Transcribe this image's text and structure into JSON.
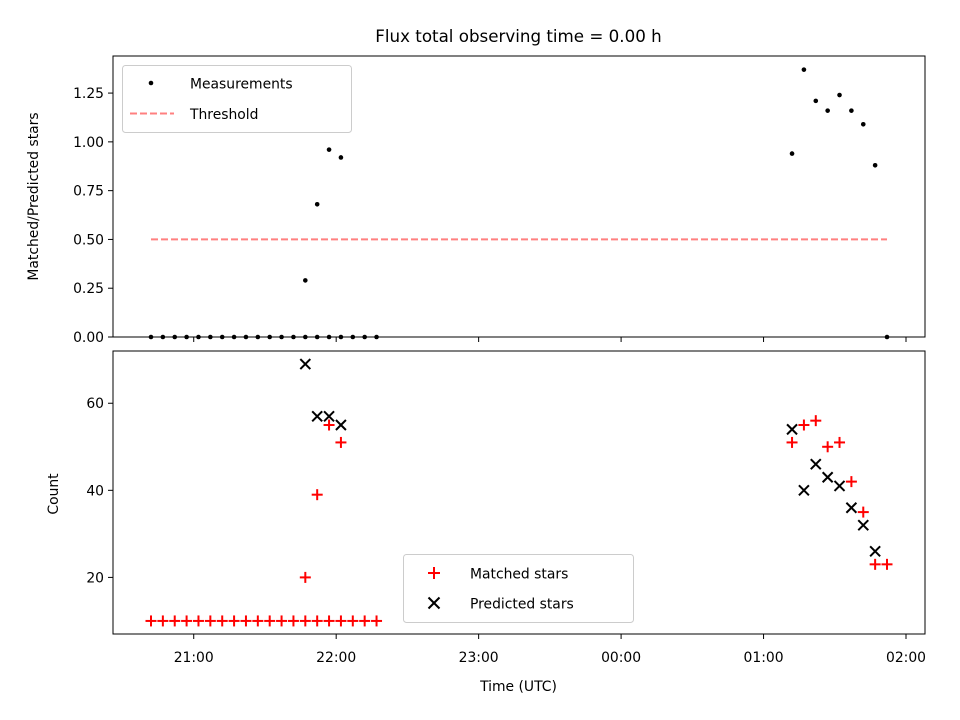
{
  "chart_data": [
    {
      "type": "scatter",
      "title": "Flux total observing time = 0.00 h",
      "xlabel": "",
      "ylabel": "Matched/Predicted stars",
      "xlim": [
        "20:26",
        "02:08"
      ],
      "ylim": [
        0,
        1.44
      ],
      "yticks": [
        0.0,
        0.25,
        0.5,
        0.75,
        1.0,
        1.25
      ],
      "ytick_labels": [
        "0.00",
        "0.25",
        "0.50",
        "0.75",
        "1.00",
        "1.25"
      ],
      "legend_position": "top-left",
      "series": [
        {
          "name": "Measurements",
          "marker": "dot",
          "color": "#000000",
          "points": [
            [
              "20:42",
              0
            ],
            [
              "20:47",
              0
            ],
            [
              "20:52",
              0
            ],
            [
              "20:57",
              0
            ],
            [
              "21:02",
              0
            ],
            [
              "21:07",
              0
            ],
            [
              "21:12",
              0
            ],
            [
              "21:17",
              0
            ],
            [
              "21:22",
              0
            ],
            [
              "21:27",
              0
            ],
            [
              "21:32",
              0
            ],
            [
              "21:37",
              0
            ],
            [
              "21:42",
              0
            ],
            [
              "21:47",
              0
            ],
            [
              "21:52",
              0
            ],
            [
              "21:57",
              0
            ],
            [
              "22:02",
              0
            ],
            [
              "22:07",
              0
            ],
            [
              "22:12",
              0
            ],
            [
              "22:17",
              0
            ],
            [
              "21:47",
              0.29
            ],
            [
              "21:52",
              0.68
            ],
            [
              "21:57",
              0.96
            ],
            [
              "22:02",
              0.92
            ],
            [
              "01:12",
              0.94
            ],
            [
              "01:17",
              1.37
            ],
            [
              "01:22",
              1.21
            ],
            [
              "01:27",
              1.16
            ],
            [
              "01:32",
              1.24
            ],
            [
              "01:37",
              1.16
            ],
            [
              "01:42",
              1.09
            ],
            [
              "01:47",
              0.88
            ],
            [
              "01:52",
              0
            ]
          ]
        },
        {
          "name": "Threshold",
          "marker": "dashed-line",
          "color": "#ff8080",
          "points": [
            [
              "20:42",
              0.5
            ],
            [
              "01:52",
              0.5
            ]
          ]
        }
      ]
    },
    {
      "type": "scatter",
      "xlabel": "Time (UTC)",
      "ylabel": "Count",
      "xlim": [
        "20:26",
        "02:08"
      ],
      "ylim": [
        7,
        72
      ],
      "xticks": [
        "21:00",
        "22:00",
        "23:00",
        "00:00",
        "01:00",
        "02:00"
      ],
      "yticks": [
        20,
        40,
        60
      ],
      "ytick_labels": [
        "20",
        "40",
        "60"
      ],
      "legend_position": "lower-center",
      "series": [
        {
          "name": "Matched stars",
          "marker": "plus",
          "color": "#ff0000",
          "points": [
            [
              "20:42",
              10
            ],
            [
              "20:47",
              10
            ],
            [
              "20:52",
              10
            ],
            [
              "20:57",
              10
            ],
            [
              "21:02",
              10
            ],
            [
              "21:07",
              10
            ],
            [
              "21:12",
              10
            ],
            [
              "21:17",
              10
            ],
            [
              "21:22",
              10
            ],
            [
              "21:27",
              10
            ],
            [
              "21:32",
              10
            ],
            [
              "21:37",
              10
            ],
            [
              "21:42",
              10
            ],
            [
              "21:47",
              10
            ],
            [
              "21:52",
              10
            ],
            [
              "21:57",
              10
            ],
            [
              "22:02",
              10
            ],
            [
              "22:07",
              10
            ],
            [
              "22:12",
              10
            ],
            [
              "22:17",
              10
            ],
            [
              "21:47",
              20
            ],
            [
              "21:52",
              39
            ],
            [
              "21:57",
              55
            ],
            [
              "22:02",
              51
            ],
            [
              "01:12",
              51
            ],
            [
              "01:17",
              55
            ],
            [
              "01:22",
              56
            ],
            [
              "01:27",
              50
            ],
            [
              "01:32",
              51
            ],
            [
              "01:37",
              42
            ],
            [
              "01:42",
              35
            ],
            [
              "01:47",
              23
            ],
            [
              "01:52",
              23
            ]
          ]
        },
        {
          "name": "Predicted stars",
          "marker": "x",
          "color": "#000000",
          "points": [
            [
              "21:47",
              69
            ],
            [
              "21:52",
              57
            ],
            [
              "21:57",
              57
            ],
            [
              "22:02",
              55
            ],
            [
              "01:12",
              54
            ],
            [
              "01:17",
              40
            ],
            [
              "01:22",
              46
            ],
            [
              "01:27",
              43
            ],
            [
              "01:32",
              41
            ],
            [
              "01:37",
              36
            ],
            [
              "01:42",
              32
            ],
            [
              "01:47",
              26
            ]
          ]
        }
      ]
    }
  ]
}
